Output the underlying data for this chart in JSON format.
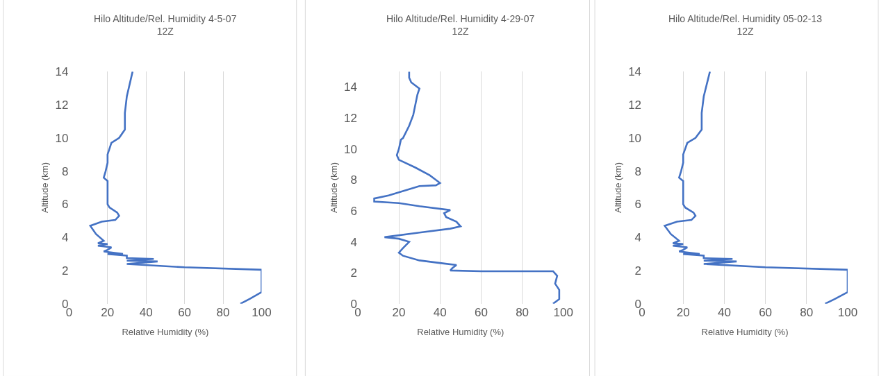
{
  "chart_data": [
    {
      "type": "line",
      "title": "Hilo Altitude/Rel. Humidity 4-5-07\n12Z",
      "xlabel": "Relative Humidity (%)",
      "ylabel": "Altitude (km)",
      "xlim": [
        0,
        100
      ],
      "xticks": [
        0,
        20,
        40,
        60,
        80,
        100
      ],
      "ylim": [
        0,
        14
      ],
      "yticks": [
        0,
        2,
        4,
        6,
        8,
        10,
        12,
        14
      ],
      "grid": "x",
      "series": [
        {
          "color": "#4472c4",
          "x": [
            89,
            94,
            100,
            100,
            60,
            30,
            46,
            30,
            44,
            30,
            30,
            20,
            28,
            18,
            20,
            22,
            15,
            20,
            15,
            18,
            14,
            11,
            17,
            24,
            26,
            25,
            21,
            20,
            20,
            18,
            19,
            20,
            20,
            22,
            26,
            29,
            29,
            29,
            30,
            32,
            33
          ],
          "values": [
            0,
            0.3,
            0.7,
            2.05,
            2.2,
            2.4,
            2.55,
            2.6,
            2.7,
            2.75,
            2.9,
            3.0,
            3.0,
            3.15,
            3.25,
            3.4,
            3.5,
            3.6,
            3.65,
            3.8,
            4.2,
            4.7,
            4.95,
            5.05,
            5.3,
            5.5,
            5.8,
            6.0,
            7.4,
            7.6,
            8.0,
            8.5,
            9.0,
            9.7,
            10.0,
            10.5,
            10.8,
            11.5,
            12.5,
            13.5,
            14.0
          ]
        }
      ]
    },
    {
      "type": "line",
      "title": "Hilo Altitude/Rel. Humidity 4-29-07\n12Z",
      "xlabel": "Relative Humidity (%)",
      "ylabel": "Altitude (km)",
      "xlim": [
        0,
        100
      ],
      "xticks": [
        0,
        20,
        40,
        60,
        80,
        100
      ],
      "ylim": [
        0,
        15
      ],
      "yticks": [
        0,
        2,
        4,
        6,
        8,
        10,
        12,
        14
      ],
      "grid": "x",
      "series": [
        {
          "color": "#4472c4",
          "x": [
            95,
            98,
            98,
            96,
            97,
            95,
            60,
            45,
            46,
            48,
            42,
            30,
            22,
            20,
            22,
            25,
            20,
            13,
            30,
            45,
            50,
            48,
            43,
            42,
            45,
            30,
            20,
            8,
            8,
            15,
            25,
            30,
            38,
            40,
            35,
            28,
            20,
            19,
            20,
            21,
            22,
            25,
            27,
            29,
            30,
            26,
            25,
            25
          ],
          "values": [
            0,
            0.3,
            0.9,
            1.3,
            1.8,
            2.1,
            2.1,
            2.15,
            2.3,
            2.5,
            2.6,
            2.8,
            3.1,
            3.3,
            3.6,
            4.0,
            4.2,
            4.3,
            4.6,
            4.85,
            5.0,
            5.3,
            5.6,
            5.85,
            6.05,
            6.3,
            6.5,
            6.6,
            6.8,
            7.0,
            7.4,
            7.6,
            7.65,
            7.8,
            8.3,
            8.8,
            9.3,
            9.6,
            10.0,
            10.6,
            10.7,
            11.5,
            12.2,
            13.5,
            13.9,
            14.3,
            14.6,
            15.0
          ]
        }
      ]
    },
    {
      "type": "line",
      "title": "Hilo Altitude/Rel. Humidity 05-02-13\n12Z",
      "xlabel": "Relative Humidity (%)",
      "ylabel": "Altitude (km)",
      "xlim": [
        0,
        100
      ],
      "xticks": [
        0,
        20,
        40,
        60,
        80,
        100
      ],
      "ylim": [
        0,
        14
      ],
      "yticks": [
        0,
        2,
        4,
        6,
        8,
        10,
        12,
        14
      ],
      "grid": "x",
      "series": [
        {
          "color": "#4472c4",
          "x": [
            89,
            94,
            100,
            100,
            60,
            30,
            46,
            30,
            44,
            30,
            30,
            20,
            28,
            18,
            20,
            22,
            15,
            20,
            15,
            18,
            14,
            11,
            17,
            24,
            26,
            25,
            21,
            20,
            20,
            18,
            19,
            20,
            20,
            22,
            26,
            29,
            29,
            29,
            30,
            32,
            33
          ],
          "values": [
            0,
            0.3,
            0.7,
            2.05,
            2.2,
            2.4,
            2.55,
            2.6,
            2.7,
            2.75,
            2.9,
            3.0,
            3.0,
            3.15,
            3.25,
            3.4,
            3.5,
            3.6,
            3.65,
            3.8,
            4.2,
            4.7,
            4.95,
            5.05,
            5.3,
            5.5,
            5.8,
            6.0,
            7.4,
            7.6,
            8.0,
            8.5,
            9.0,
            9.7,
            10.0,
            10.5,
            10.8,
            11.5,
            12.5,
            13.5,
            14.0
          ]
        }
      ]
    }
  ]
}
